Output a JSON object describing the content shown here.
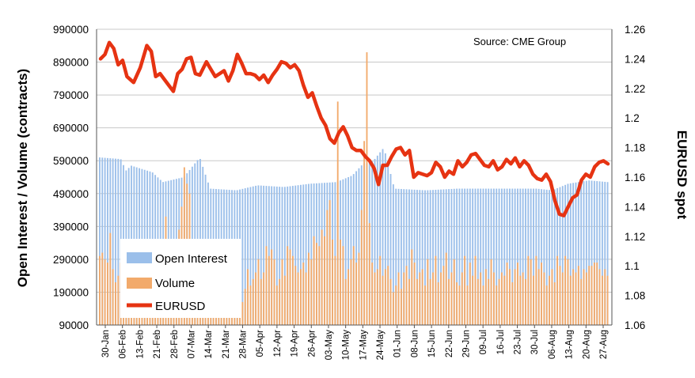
{
  "chart_data": {
    "type": "bar",
    "source_note": "Source: CME Group",
    "ylabel_left": "Open Interest / Volume (contracts)",
    "ylabel_right": "EURUSD spot",
    "left_axis": {
      "min": 90000,
      "max": 990000,
      "ticks": [
        "990000",
        "890000",
        "790000",
        "690000",
        "590000",
        "490000",
        "390000",
        "290000",
        "190000",
        "90000"
      ]
    },
    "right_axis": {
      "min": 1.06,
      "max": 1.26,
      "ticks": [
        "1.26",
        "1.24",
        "1.22",
        "1.2",
        "1.18",
        "1.16",
        "1.14",
        "1.12",
        "1.1",
        "1.08",
        "1.06"
      ]
    },
    "x_ticks": [
      "30-Jan",
      "06-Feb",
      "13-Feb",
      "21-Feb",
      "28-Feb",
      "07-Mar",
      "14-Mar",
      "21-Mar",
      "28-Mar",
      "05-Apr",
      "12-Apr",
      "19-Apr",
      "26-Apr",
      "03-May",
      "10-May",
      "17-May",
      "24-May",
      "01-Jun",
      "08-Jun",
      "15-Jun",
      "22-Jun",
      "29-Jun",
      "09-Jul",
      "16-Jul",
      "23-Jul",
      "30-Jul",
      "06-Aug",
      "13-Aug",
      "20-Aug",
      "27-Aug"
    ],
    "legend": [
      "Open Interest",
      "Volume",
      "EURUSD"
    ],
    "colors": {
      "open_interest": "#9bbfea",
      "volume": "#f2aa6b",
      "eurusd": "#e63312",
      "grid": "#c8c8c8"
    },
    "grid": true,
    "legend_position": "bottom-left",
    "series_key_points": {
      "open_interest": [
        [
          0,
          600000
        ],
        [
          8,
          595000
        ],
        [
          10,
          560000
        ],
        [
          12,
          575000
        ],
        [
          20,
          555000
        ],
        [
          24,
          525000
        ],
        [
          32,
          540000
        ],
        [
          38,
          600000
        ],
        [
          42,
          505000
        ],
        [
          52,
          500000
        ],
        [
          60,
          515000
        ],
        [
          70,
          510000
        ],
        [
          80,
          520000
        ],
        [
          90,
          525000
        ],
        [
          96,
          545000
        ],
        [
          100,
          580000
        ],
        [
          104,
          590000
        ],
        [
          108,
          630000
        ],
        [
          112,
          505000
        ],
        [
          124,
          500000
        ],
        [
          136,
          505000
        ],
        [
          148,
          505000
        ],
        [
          158,
          505000
        ],
        [
          166,
          505000
        ],
        [
          172,
          500000
        ],
        [
          178,
          520000
        ],
        [
          186,
          530000
        ],
        [
          193,
          525000
        ]
      ],
      "volume": [
        300000,
        310000,
        290000,
        280000,
        370000,
        260000,
        220000,
        240000,
        280000,
        320000,
        330000,
        300000,
        270000,
        250000,
        260000,
        240000,
        270000,
        250000,
        230000,
        220000,
        300000,
        320000,
        270000,
        330000,
        300000,
        420000,
        300000,
        300000,
        260000,
        230000,
        380000,
        450000,
        570000,
        520000,
        490000,
        320000,
        270000,
        230000,
        250000,
        230000,
        200000,
        180000,
        170000,
        150000,
        170000,
        190000,
        210000,
        230000,
        200000,
        160000,
        210000,
        240000,
        180000,
        230000,
        160000,
        200000,
        260000,
        210000,
        230000,
        250000,
        290000,
        230000,
        250000,
        330000,
        300000,
        320000,
        290000,
        210000,
        230000,
        290000,
        240000,
        330000,
        320000,
        300000,
        270000,
        250000,
        260000,
        280000,
        250000,
        310000,
        290000,
        360000,
        340000,
        330000,
        380000,
        360000,
        440000,
        470000,
        350000,
        300000,
        770000,
        350000,
        330000,
        230000,
        260000,
        290000,
        330000,
        280000,
        310000,
        440000,
        650000,
        920000,
        400000,
        280000,
        250000,
        260000,
        300000,
        240000,
        260000,
        270000,
        230000,
        190000,
        210000,
        250000,
        200000,
        250000,
        270000,
        230000,
        320000,
        280000,
        230000,
        250000,
        260000,
        210000,
        290000,
        230000,
        250000,
        300000,
        220000,
        250000,
        270000,
        310000,
        230000,
        250000,
        290000,
        220000,
        210000,
        250000,
        300000,
        210000,
        280000,
        240000,
        300000,
        230000,
        250000,
        210000,
        260000,
        230000,
        290000,
        250000,
        210000,
        230000,
        250000,
        240000,
        280000,
        260000,
        220000,
        260000,
        280000,
        240000,
        250000,
        230000,
        300000,
        290000,
        240000,
        300000,
        260000,
        280000,
        250000,
        210000,
        240000,
        260000,
        220000,
        300000,
        270000,
        250000,
        300000,
        290000,
        240000,
        260000,
        250000,
        270000,
        230000,
        260000,
        250000,
        270000,
        270000,
        280000,
        280000,
        260000,
        240000,
        260000,
        240000
      ],
      "eurusd": [
        [
          0,
          1.24
        ],
        [
          2,
          1.243
        ],
        [
          4,
          1.251
        ],
        [
          6,
          1.247
        ],
        [
          8,
          1.236
        ],
        [
          10,
          1.239
        ],
        [
          12,
          1.228
        ],
        [
          15,
          1.224
        ],
        [
          18,
          1.234
        ],
        [
          21,
          1.249
        ],
        [
          23,
          1.245
        ],
        [
          25,
          1.228
        ],
        [
          27,
          1.23
        ],
        [
          29,
          1.226
        ],
        [
          31,
          1.222
        ],
        [
          33,
          1.218
        ],
        [
          35,
          1.23
        ],
        [
          37,
          1.233
        ],
        [
          39,
          1.24
        ],
        [
          41,
          1.241
        ],
        [
          43,
          1.23
        ],
        [
          45,
          1.229
        ],
        [
          48,
          1.238
        ],
        [
          50,
          1.233
        ],
        [
          52,
          1.228
        ],
        [
          54,
          1.23
        ],
        [
          56,
          1.232
        ],
        [
          58,
          1.225
        ],
        [
          60,
          1.232
        ],
        [
          62,
          1.243
        ],
        [
          64,
          1.237
        ],
        [
          66,
          1.23
        ],
        [
          68,
          1.23
        ],
        [
          70,
          1.229
        ],
        [
          72,
          1.226
        ],
        [
          74,
          1.229
        ],
        [
          76,
          1.224
        ],
        [
          78,
          1.229
        ],
        [
          80,
          1.233
        ],
        [
          82,
          1.238
        ],
        [
          84,
          1.237
        ],
        [
          86,
          1.234
        ],
        [
          88,
          1.236
        ],
        [
          90,
          1.232
        ],
        [
          92,
          1.222
        ],
        [
          94,
          1.214
        ],
        [
          96,
          1.217
        ],
        [
          98,
          1.208
        ],
        [
          100,
          1.2
        ],
        [
          102,
          1.195
        ],
        [
          104,
          1.186
        ],
        [
          106,
          1.183
        ],
        [
          108,
          1.19
        ],
        [
          110,
          1.194
        ],
        [
          112,
          1.188
        ],
        [
          114,
          1.18
        ],
        [
          116,
          1.178
        ],
        [
          118,
          1.178
        ],
        [
          120,
          1.174
        ],
        [
          122,
          1.171
        ],
        [
          124,
          1.166
        ],
        [
          126,
          1.155
        ],
        [
          128,
          1.168
        ],
        [
          130,
          1.168
        ],
        [
          132,
          1.174
        ],
        [
          134,
          1.179
        ],
        [
          136,
          1.18
        ],
        [
          138,
          1.175
        ],
        [
          140,
          1.178
        ],
        [
          142,
          1.16
        ],
        [
          144,
          1.163
        ],
        [
          146,
          1.162
        ],
        [
          148,
          1.161
        ],
        [
          150,
          1.163
        ],
        [
          152,
          1.17
        ],
        [
          154,
          1.167
        ],
        [
          156,
          1.16
        ],
        [
          158,
          1.164
        ],
        [
          160,
          1.162
        ],
        [
          162,
          1.171
        ],
        [
          164,
          1.167
        ],
        [
          166,
          1.17
        ],
        [
          168,
          1.175
        ],
        [
          170,
          1.176
        ],
        [
          172,
          1.172
        ],
        [
          174,
          1.168
        ],
        [
          176,
          1.167
        ],
        [
          178,
          1.171
        ],
        [
          180,
          1.165
        ],
        [
          182,
          1.167
        ],
        [
          184,
          1.172
        ],
        [
          186,
          1.169
        ],
        [
          188,
          1.173
        ],
        [
          190,
          1.167
        ],
        [
          192,
          1.171
        ],
        [
          194,
          1.168
        ],
        [
          196,
          1.162
        ],
        [
          198,
          1.159
        ],
        [
          200,
          1.158
        ],
        [
          202,
          1.162
        ],
        [
          204,
          1.157
        ],
        [
          206,
          1.144
        ],
        [
          208,
          1.135
        ],
        [
          210,
          1.134
        ],
        [
          212,
          1.14
        ],
        [
          214,
          1.146
        ],
        [
          216,
          1.148
        ],
        [
          218,
          1.158
        ],
        [
          220,
          1.162
        ],
        [
          222,
          1.16
        ],
        [
          224,
          1.167
        ],
        [
          226,
          1.17
        ],
        [
          228,
          1.171
        ],
        [
          230,
          1.169
        ]
      ]
    }
  }
}
